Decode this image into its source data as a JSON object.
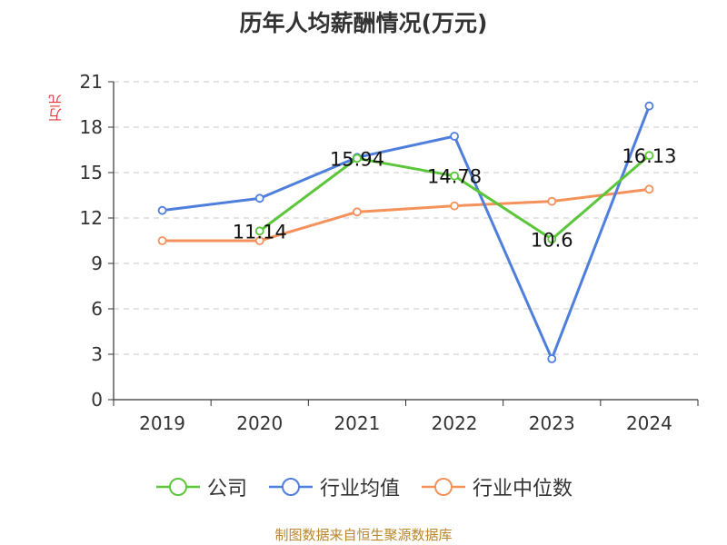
{
  "chart_data": {
    "type": "line",
    "title": "历年人均薪酬情况(万元)",
    "ylabel": "万元",
    "xlabel": "",
    "categories": [
      "2019",
      "2020",
      "2021",
      "2022",
      "2023",
      "2024"
    ],
    "ylim": [
      0,
      21
    ],
    "yticks": [
      0,
      3,
      6,
      9,
      12,
      15,
      18,
      21
    ],
    "grid": true,
    "legend_position": "bottom",
    "series": [
      {
        "name": "公司",
        "color": "#5cc63a",
        "values": [
          null,
          11.14,
          15.94,
          14.78,
          10.6,
          16.13
        ],
        "labels": [
          "",
          "11.14",
          "15.94",
          "14.78",
          "10.6",
          "16.13"
        ]
      },
      {
        "name": "行业均值",
        "color": "#4f7fdc",
        "values": [
          12.5,
          13.3,
          16.0,
          17.4,
          2.7,
          19.4
        ],
        "labels": [
          "",
          "",
          "",
          "",
          "",
          ""
        ]
      },
      {
        "name": "行业中位数",
        "color": "#f5915b",
        "values": [
          10.5,
          10.5,
          12.4,
          12.8,
          13.1,
          13.9
        ],
        "labels": [
          "",
          "",
          "",
          "",
          "",
          ""
        ]
      }
    ]
  },
  "source": "制图数据来自恒生聚源数据库"
}
